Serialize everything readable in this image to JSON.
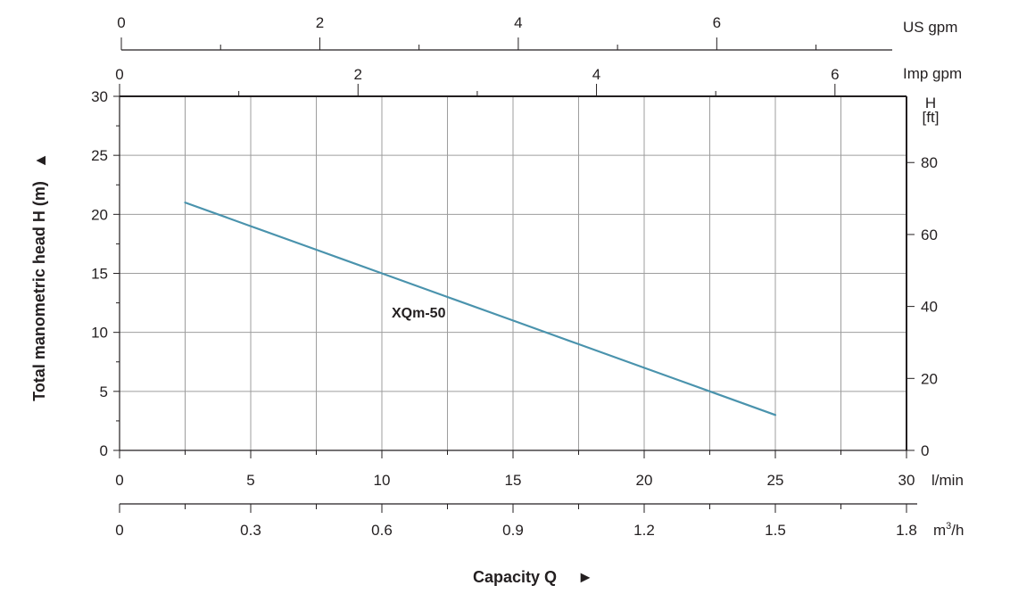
{
  "chart_data": {
    "type": "line",
    "x_axis": {
      "title": "Capacity Q",
      "title_arrow": "►",
      "unit": "l/min",
      "range": [
        0,
        30
      ],
      "ticks": [
        "0",
        "5",
        "10",
        "15",
        "20",
        "25",
        "30"
      ]
    },
    "x_axis_secondary": {
      "unit_base": "m",
      "unit_sup": "3",
      "unit_tail": "/h",
      "range": [
        0,
        1.8
      ],
      "ticks": [
        "0",
        "0.3",
        "0.6",
        "0.9",
        "1.2",
        "1.5",
        "1.8"
      ]
    },
    "top_axis_us": {
      "unit": "US gpm",
      "range": [
        0,
        7.93
      ],
      "ticks": [
        "0",
        "2",
        "4",
        "6"
      ]
    },
    "top_axis_imp": {
      "unit": "Imp gpm",
      "range": [
        0,
        6.6
      ],
      "ticks": [
        "0",
        "2",
        "4",
        "6"
      ]
    },
    "y_axis": {
      "title": "Total manometric head H (m)",
      "title_arrow": "▲",
      "range": [
        0,
        30
      ],
      "ticks": [
        "0",
        "5",
        "10",
        "15",
        "20",
        "25",
        "30"
      ]
    },
    "y_axis_right": {
      "unit_line1": "H",
      "unit_line2": "[ft]",
      "range": [
        0,
        98.4
      ],
      "ticks": [
        "0",
        "20",
        "40",
        "60",
        "80"
      ]
    },
    "series": [
      {
        "name": "XQm-50",
        "color": "#4a93ad",
        "x": [
          2.5,
          5,
          7.5,
          10,
          12.5,
          15,
          17.5,
          20,
          22.5,
          25
        ],
        "y": [
          21,
          19,
          17,
          15,
          13,
          11,
          9,
          7,
          5,
          3
        ]
      }
    ],
    "grid": true,
    "grid_color": "#9d9d9d"
  }
}
